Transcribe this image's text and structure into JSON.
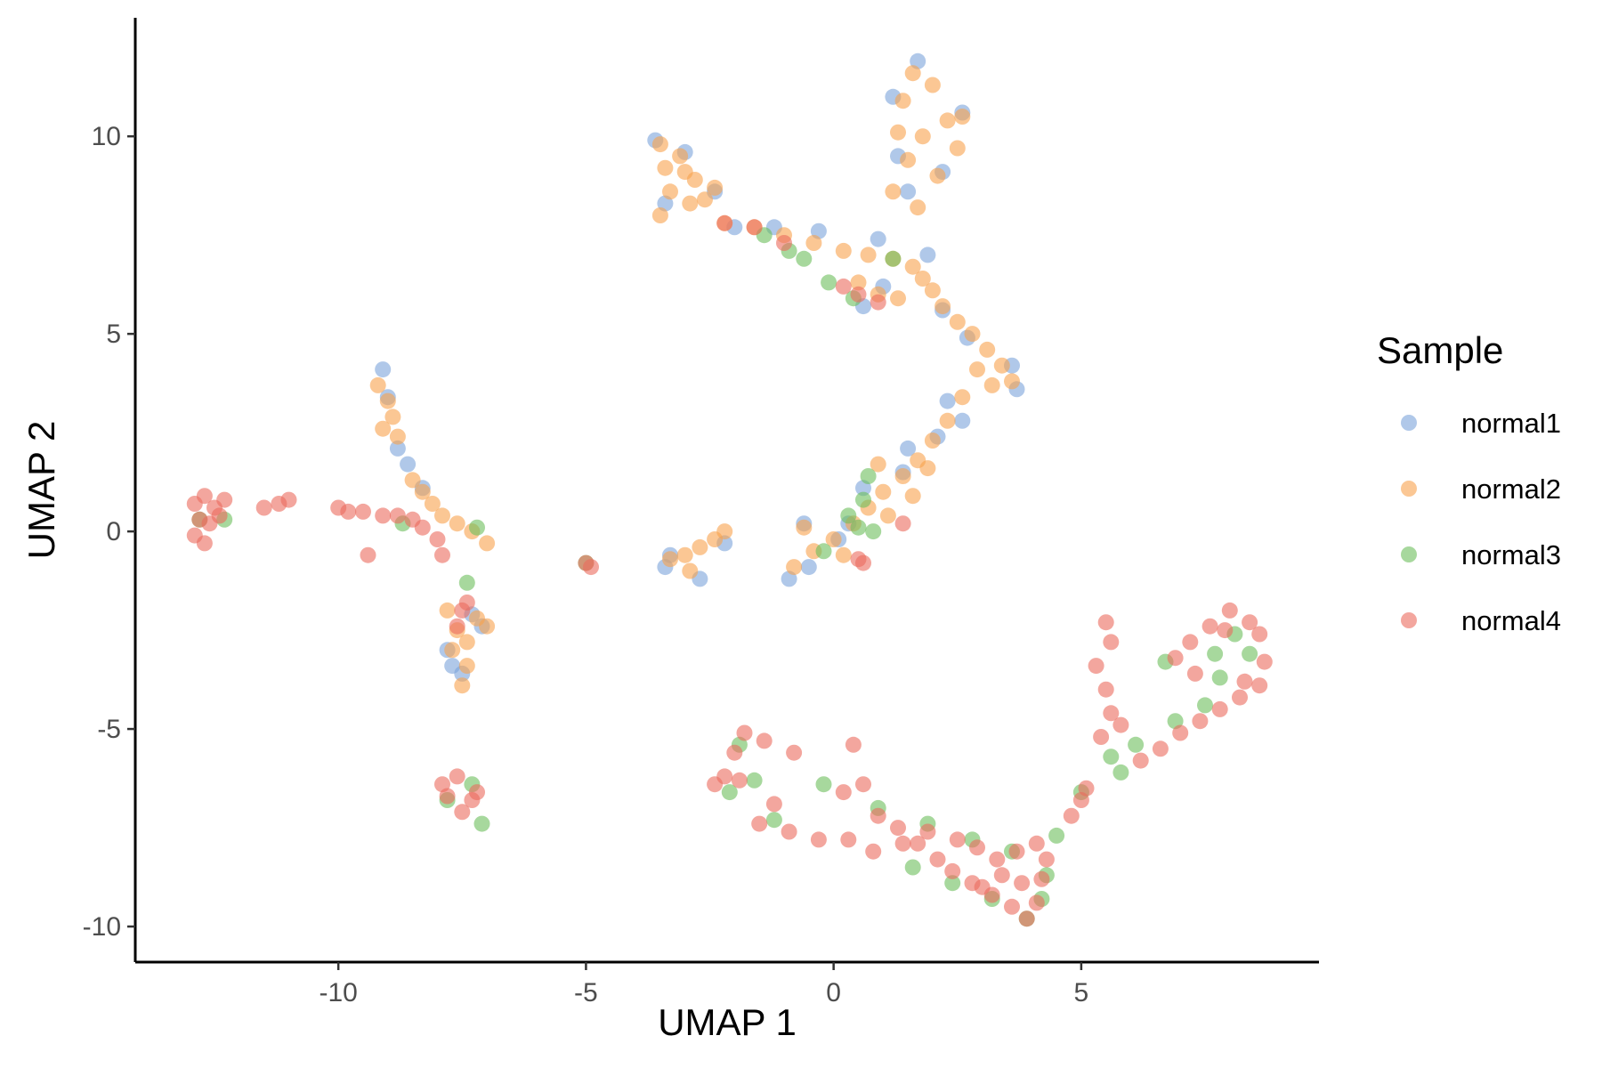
{
  "chart_data": {
    "type": "scatter",
    "title": "",
    "xlabel": "UMAP 1",
    "ylabel": "UMAP 2",
    "xlim": [
      -14.1,
      9.8
    ],
    "ylim": [
      -10.9,
      13
    ],
    "x_ticks": [
      -10,
      -5,
      0,
      5
    ],
    "x_tick_labels": [
      "-10",
      "-5",
      "0",
      "5"
    ],
    "y_ticks": [
      -10,
      -5,
      0,
      5,
      10
    ],
    "y_tick_labels": [
      "-10",
      "-5",
      "0",
      "5",
      "10"
    ],
    "grid": false,
    "legend": {
      "title": "Sample",
      "position": "right"
    },
    "point_opacity": 0.6,
    "series": [
      {
        "name": "normal1",
        "color": "#7BA3DB",
        "points": [
          [
            1.7,
            11.9
          ],
          [
            1.2,
            11.0
          ],
          [
            2.6,
            10.6
          ],
          [
            1.3,
            9.5
          ],
          [
            2.2,
            9.1
          ],
          [
            1.5,
            8.6
          ],
          [
            -3.6,
            9.9
          ],
          [
            -3.0,
            9.6
          ],
          [
            -2.4,
            8.6
          ],
          [
            -3.4,
            8.3
          ],
          [
            -2.0,
            7.7
          ],
          [
            -1.2,
            7.7
          ],
          [
            -0.3,
            7.6
          ],
          [
            0.9,
            7.4
          ],
          [
            1.9,
            7.0
          ],
          [
            1.0,
            6.2
          ],
          [
            0.6,
            5.7
          ],
          [
            2.2,
            5.6
          ],
          [
            2.7,
            4.9
          ],
          [
            3.6,
            4.2
          ],
          [
            3.7,
            3.6
          ],
          [
            2.3,
            3.3
          ],
          [
            2.6,
            2.8
          ],
          [
            1.5,
            2.1
          ],
          [
            2.1,
            2.4
          ],
          [
            0.6,
            1.1
          ],
          [
            1.4,
            1.5
          ],
          [
            0.3,
            0.2
          ],
          [
            -0.6,
            0.2
          ],
          [
            -0.9,
            -1.2
          ],
          [
            -0.5,
            -0.9
          ],
          [
            0.1,
            -0.2
          ],
          [
            -3.3,
            -0.6
          ],
          [
            -3.4,
            -0.9
          ],
          [
            -2.7,
            -1.2
          ],
          [
            -2.2,
            -0.3
          ],
          [
            -9.1,
            4.1
          ],
          [
            -9.0,
            3.4
          ],
          [
            -8.8,
            2.1
          ],
          [
            -8.6,
            1.7
          ],
          [
            -8.3,
            1.1
          ],
          [
            -7.7,
            -3.4
          ],
          [
            -7.5,
            -3.6
          ],
          [
            -7.8,
            -3.0
          ],
          [
            -7.3,
            -2.1
          ],
          [
            -7.1,
            -2.4
          ]
        ]
      },
      {
        "name": "normal2",
        "color": "#F9A24C",
        "points": [
          [
            1.6,
            11.6
          ],
          [
            2.0,
            11.3
          ],
          [
            1.4,
            10.9
          ],
          [
            2.3,
            10.4
          ],
          [
            1.8,
            10.0
          ],
          [
            2.5,
            9.7
          ],
          [
            1.5,
            9.4
          ],
          [
            2.1,
            9.0
          ],
          [
            1.2,
            8.6
          ],
          [
            1.7,
            8.2
          ],
          [
            2.6,
            10.5
          ],
          [
            1.3,
            10.1
          ],
          [
            -3.5,
            9.8
          ],
          [
            -3.1,
            9.5
          ],
          [
            -3.4,
            9.2
          ],
          [
            -2.8,
            8.9
          ],
          [
            -3.3,
            8.6
          ],
          [
            -2.6,
            8.4
          ],
          [
            -3.5,
            8.0
          ],
          [
            -2.9,
            8.3
          ],
          [
            -2.4,
            8.7
          ],
          [
            -3.0,
            9.1
          ],
          [
            -2.2,
            7.8
          ],
          [
            -1.6,
            7.7
          ],
          [
            -1.0,
            7.5
          ],
          [
            -0.4,
            7.3
          ],
          [
            0.2,
            7.1
          ],
          [
            0.7,
            7.0
          ],
          [
            1.2,
            6.9
          ],
          [
            1.6,
            6.7
          ],
          [
            0.5,
            6.3
          ],
          [
            0.9,
            6.0
          ],
          [
            1.3,
            5.9
          ],
          [
            1.8,
            6.4
          ],
          [
            2.0,
            6.1
          ],
          [
            2.2,
            5.7
          ],
          [
            2.5,
            5.3
          ],
          [
            2.8,
            5.0
          ],
          [
            3.1,
            4.6
          ],
          [
            3.4,
            4.2
          ],
          [
            3.6,
            3.8
          ],
          [
            3.2,
            3.7
          ],
          [
            2.9,
            4.1
          ],
          [
            2.6,
            3.4
          ],
          [
            2.3,
            2.8
          ],
          [
            2.0,
            2.3
          ],
          [
            1.7,
            1.8
          ],
          [
            1.4,
            1.4
          ],
          [
            1.0,
            1.0
          ],
          [
            0.7,
            0.6
          ],
          [
            0.4,
            0.2
          ],
          [
            0.0,
            -0.2
          ],
          [
            -0.4,
            -0.5
          ],
          [
            -0.8,
            -0.9
          ],
          [
            -0.6,
            0.1
          ],
          [
            0.2,
            -0.6
          ],
          [
            1.1,
            0.4
          ],
          [
            1.6,
            0.9
          ],
          [
            1.9,
            1.6
          ],
          [
            0.9,
            1.7
          ],
          [
            -3.3,
            -0.7
          ],
          [
            -3.0,
            -0.6
          ],
          [
            -2.7,
            -0.4
          ],
          [
            -2.4,
            -0.2
          ],
          [
            -2.2,
            0.0
          ],
          [
            -2.9,
            -1.0
          ],
          [
            -9.2,
            3.7
          ],
          [
            -9.0,
            3.3
          ],
          [
            -8.9,
            2.9
          ],
          [
            -9.1,
            2.6
          ],
          [
            -8.8,
            2.4
          ],
          [
            -8.5,
            1.3
          ],
          [
            -8.3,
            1.0
          ],
          [
            -8.1,
            0.7
          ],
          [
            -7.9,
            0.4
          ],
          [
            -7.6,
            0.2
          ],
          [
            -7.3,
            0.0
          ],
          [
            -7.0,
            -0.3
          ],
          [
            -7.8,
            -2.0
          ],
          [
            -7.6,
            -2.5
          ],
          [
            -7.7,
            -3.0
          ],
          [
            -7.4,
            -3.4
          ],
          [
            -7.5,
            -3.9
          ],
          [
            -7.2,
            -2.2
          ],
          [
            -7.0,
            -2.4
          ],
          [
            -7.4,
            -2.8
          ]
        ]
      },
      {
        "name": "normal3",
        "color": "#6DBE5B",
        "points": [
          [
            -1.4,
            7.5
          ],
          [
            -0.9,
            7.1
          ],
          [
            -0.6,
            6.9
          ],
          [
            -0.1,
            6.3
          ],
          [
            0.4,
            5.9
          ],
          [
            1.2,
            6.9
          ],
          [
            0.6,
            0.8
          ],
          [
            0.7,
            1.4
          ],
          [
            0.3,
            0.4
          ],
          [
            0.8,
            0.0
          ],
          [
            -0.2,
            -0.5
          ],
          [
            0.5,
            0.1
          ],
          [
            -7.4,
            -1.3
          ],
          [
            -7.2,
            0.1
          ],
          [
            -8.7,
            0.2
          ],
          [
            -12.8,
            0.3
          ],
          [
            -12.3,
            0.3
          ],
          [
            -5.0,
            -0.8
          ],
          [
            -1.9,
            -5.4
          ],
          [
            -2.1,
            -6.6
          ],
          [
            -1.6,
            -6.3
          ],
          [
            -0.2,
            -6.4
          ],
          [
            0.9,
            -7.0
          ],
          [
            1.9,
            -7.4
          ],
          [
            2.8,
            -7.8
          ],
          [
            3.6,
            -8.1
          ],
          [
            4.3,
            -8.7
          ],
          [
            4.2,
            -9.3
          ],
          [
            3.9,
            -9.8
          ],
          [
            3.2,
            -9.3
          ],
          [
            2.4,
            -8.9
          ],
          [
            1.6,
            -8.5
          ],
          [
            -1.2,
            -7.3
          ],
          [
            4.5,
            -7.7
          ],
          [
            5.0,
            -6.6
          ],
          [
            5.6,
            -5.7
          ],
          [
            6.1,
            -5.4
          ],
          [
            5.8,
            -6.1
          ],
          [
            6.9,
            -4.8
          ],
          [
            6.7,
            -3.3
          ],
          [
            7.5,
            -4.4
          ],
          [
            7.8,
            -3.7
          ],
          [
            8.1,
            -2.6
          ],
          [
            8.4,
            -3.1
          ],
          [
            7.7,
            -3.1
          ],
          [
            -7.3,
            -6.4
          ],
          [
            -7.1,
            -7.4
          ],
          [
            -7.8,
            -6.8
          ]
        ]
      },
      {
        "name": "normal4",
        "color": "#EB6B5E",
        "points": [
          [
            -12.9,
            0.7
          ],
          [
            -12.7,
            0.9
          ],
          [
            -12.5,
            0.6
          ],
          [
            -12.8,
            0.3
          ],
          [
            -12.6,
            0.2
          ],
          [
            -12.9,
            -0.1
          ],
          [
            -12.4,
            0.4
          ],
          [
            -12.3,
            0.8
          ],
          [
            -12.7,
            -0.3
          ],
          [
            -11.5,
            0.6
          ],
          [
            -11.2,
            0.7
          ],
          [
            -11.0,
            0.8
          ],
          [
            -10.0,
            0.6
          ],
          [
            -9.8,
            0.5
          ],
          [
            -9.5,
            0.5
          ],
          [
            -9.1,
            0.4
          ],
          [
            -8.8,
            0.4
          ],
          [
            -8.5,
            0.3
          ],
          [
            -8.3,
            0.1
          ],
          [
            -8.0,
            -0.2
          ],
          [
            -9.4,
            -0.6
          ],
          [
            -7.9,
            -0.6
          ],
          [
            -5.0,
            -0.8
          ],
          [
            -4.9,
            -0.9
          ],
          [
            -7.4,
            -1.8
          ],
          [
            -7.6,
            -2.4
          ],
          [
            -7.5,
            -2.0
          ],
          [
            -7.9,
            -6.4
          ],
          [
            -7.6,
            -6.2
          ],
          [
            -7.3,
            -6.8
          ],
          [
            -7.5,
            -7.1
          ],
          [
            -7.8,
            -6.7
          ],
          [
            -7.2,
            -6.6
          ],
          [
            -2.2,
            7.8
          ],
          [
            -1.6,
            7.7
          ],
          [
            -1.0,
            7.3
          ],
          [
            0.2,
            6.2
          ],
          [
            0.5,
            6.0
          ],
          [
            0.9,
            5.8
          ],
          [
            0.5,
            -0.7
          ],
          [
            0.6,
            -0.8
          ],
          [
            1.4,
            0.2
          ],
          [
            -2.4,
            -6.4
          ],
          [
            -2.2,
            -6.2
          ],
          [
            -2.0,
            -5.6
          ],
          [
            -1.8,
            -5.1
          ],
          [
            -1.4,
            -5.3
          ],
          [
            -0.8,
            -5.6
          ],
          [
            -1.9,
            -6.3
          ],
          [
            -1.2,
            -6.9
          ],
          [
            -1.5,
            -7.4
          ],
          [
            -0.9,
            -7.6
          ],
          [
            -0.3,
            -7.8
          ],
          [
            0.2,
            -6.6
          ],
          [
            0.4,
            -5.4
          ],
          [
            0.6,
            -6.4
          ],
          [
            0.9,
            -7.2
          ],
          [
            1.3,
            -7.5
          ],
          [
            1.7,
            -7.9
          ],
          [
            2.1,
            -8.3
          ],
          [
            2.4,
            -8.6
          ],
          [
            2.8,
            -8.9
          ],
          [
            3.2,
            -9.2
          ],
          [
            3.6,
            -9.5
          ],
          [
            3.9,
            -9.8
          ],
          [
            4.1,
            -9.4
          ],
          [
            4.2,
            -8.8
          ],
          [
            4.3,
            -8.3
          ],
          [
            4.1,
            -7.9
          ],
          [
            3.7,
            -8.1
          ],
          [
            3.3,
            -8.3
          ],
          [
            2.9,
            -8.0
          ],
          [
            2.5,
            -7.8
          ],
          [
            1.9,
            -7.6
          ],
          [
            1.4,
            -7.9
          ],
          [
            0.8,
            -8.1
          ],
          [
            0.3,
            -7.8
          ],
          [
            3.4,
            -8.7
          ],
          [
            3.8,
            -8.9
          ],
          [
            3.0,
            -9.0
          ],
          [
            4.8,
            -7.2
          ],
          [
            5.0,
            -6.8
          ],
          [
            5.1,
            -6.5
          ],
          [
            5.4,
            -5.2
          ],
          [
            5.6,
            -4.6
          ],
          [
            5.5,
            -4.0
          ],
          [
            5.3,
            -3.4
          ],
          [
            5.6,
            -2.8
          ],
          [
            5.5,
            -2.3
          ],
          [
            5.8,
            -4.9
          ],
          [
            6.2,
            -5.8
          ],
          [
            6.6,
            -5.5
          ],
          [
            7.0,
            -5.1
          ],
          [
            7.4,
            -4.8
          ],
          [
            7.8,
            -4.5
          ],
          [
            8.2,
            -4.2
          ],
          [
            8.6,
            -3.9
          ],
          [
            8.7,
            -3.3
          ],
          [
            8.6,
            -2.6
          ],
          [
            8.4,
            -2.3
          ],
          [
            8.0,
            -2.0
          ],
          [
            7.6,
            -2.4
          ],
          [
            7.2,
            -2.8
          ],
          [
            6.9,
            -3.2
          ],
          [
            7.3,
            -3.6
          ],
          [
            8.3,
            -3.8
          ],
          [
            7.9,
            -2.5
          ]
        ]
      }
    ]
  }
}
